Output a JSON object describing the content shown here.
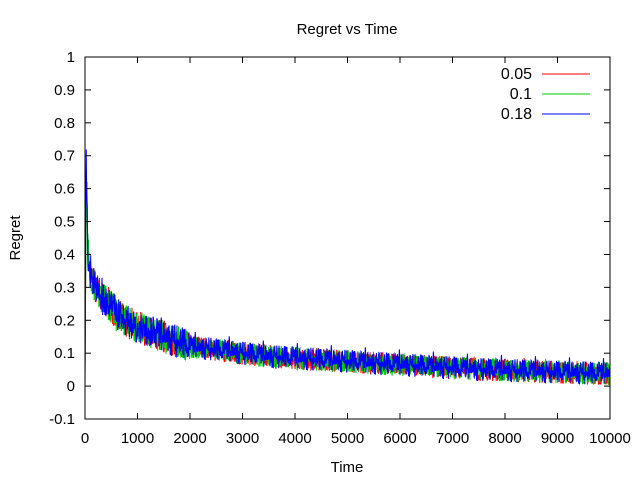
{
  "chart_data": {
    "type": "line",
    "title": "Regret vs Time",
    "xlabel": "Time",
    "ylabel": "Regret",
    "xlim": [
      0,
      10000
    ],
    "ylim": [
      -0.1,
      1
    ],
    "grid": false,
    "legend_position": "top-right",
    "x_ticks": [
      "0",
      "1000",
      "2000",
      "3000",
      "4000",
      "5000",
      "6000",
      "7000",
      "8000",
      "9000",
      "10000"
    ],
    "y_ticks": [
      "-0.1",
      "0",
      "0.1",
      "0.2",
      "0.3",
      "0.4",
      "0.5",
      "0.6",
      "0.7",
      "0.8",
      "0.9",
      "1"
    ],
    "x_tick_values": [
      0,
      1000,
      2000,
      3000,
      4000,
      5000,
      6000,
      7000,
      8000,
      9000,
      10000
    ],
    "y_tick_values": [
      -0.1,
      0,
      0.1,
      0.2,
      0.3,
      0.4,
      0.5,
      0.6,
      0.7,
      0.8,
      0.9,
      1
    ],
    "x": [
      0,
      25,
      50,
      100,
      200,
      300,
      500,
      750,
      1000,
      1500,
      2000,
      2500,
      3000,
      3500,
      4000,
      4500,
      5000,
      5500,
      6000,
      6500,
      7000,
      7500,
      8000,
      8500,
      9000,
      9500,
      10000
    ],
    "series": [
      {
        "name": "0.05",
        "color": "#ff0000",
        "values": [
          0.05,
          0.66,
          0.4,
          0.35,
          0.3,
          0.28,
          0.24,
          0.2,
          0.18,
          0.15,
          0.12,
          0.11,
          0.1,
          0.09,
          0.085,
          0.08,
          0.075,
          0.07,
          0.065,
          0.06,
          0.055,
          0.05,
          0.048,
          0.045,
          0.042,
          0.04,
          0.038
        ]
      },
      {
        "name": "0.1",
        "color": "#00cc00",
        "values": [
          0.0,
          0.6,
          0.45,
          0.34,
          0.3,
          0.27,
          0.24,
          0.2,
          0.18,
          0.15,
          0.12,
          0.11,
          0.1,
          0.09,
          0.085,
          0.08,
          0.075,
          0.07,
          0.065,
          0.06,
          0.055,
          0.05,
          0.048,
          0.045,
          0.042,
          0.04,
          0.038
        ]
      },
      {
        "name": "0.18",
        "color": "#0000ff",
        "values": [
          0.0,
          0.74,
          0.42,
          0.33,
          0.3,
          0.27,
          0.24,
          0.2,
          0.18,
          0.15,
          0.12,
          0.11,
          0.1,
          0.09,
          0.085,
          0.08,
          0.075,
          0.07,
          0.065,
          0.06,
          0.055,
          0.05,
          0.048,
          0.045,
          0.042,
          0.04,
          0.038
        ]
      }
    ]
  }
}
